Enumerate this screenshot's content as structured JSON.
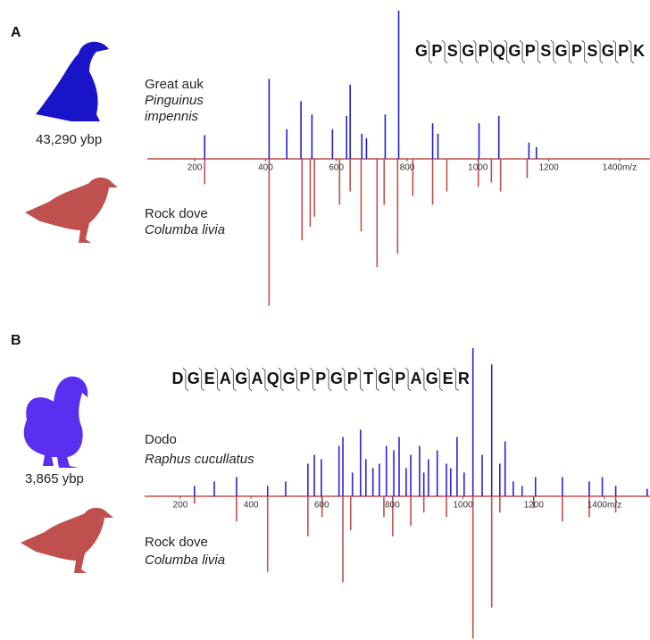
{
  "chart_data": [
    {
      "type": "mirror",
      "panel": "A",
      "sequence": [
        "G",
        "P",
        "S",
        "G",
        "P",
        "Q",
        "G",
        "P",
        "S",
        "G",
        "P",
        "S",
        "G",
        "P",
        "K"
      ],
      "xlim": [
        66,
        1486
      ],
      "xticks": [
        200,
        400,
        600,
        800,
        1000,
        1200,
        {
          "value": 1400,
          "label": "1400m/z"
        }
      ],
      "ylim": [
        -100,
        100
      ],
      "series": [
        {
          "name": "Great auk",
          "species": "Pinguinus impennis",
          "age": "43,290 ybp",
          "color": "#1f1fcc",
          "x": [
            228,
            410,
            460,
            500,
            531,
            589,
            629,
            639,
            672,
            685,
            738,
            776,
            872,
            887,
            1003,
            1059,
            1144,
            1165
          ],
          "values": [
            16,
            54,
            20,
            39,
            30,
            20,
            29,
            50,
            17,
            14,
            30,
            100,
            24,
            17,
            24,
            29,
            11,
            8
          ]
        },
        {
          "name": "Rock dove",
          "species": "Columba livia",
          "color": "#c0504d",
          "x": [
            228,
            410,
            503,
            526,
            538,
            609,
            639,
            670,
            715,
            735,
            773,
            816,
            872,
            912,
            1001,
            1038,
            1064,
            1139
          ],
          "values": [
            -17,
            -99,
            -55,
            -46,
            -39,
            -31,
            -22,
            -49,
            -73,
            -31,
            -64,
            -25,
            -31,
            -22,
            -19,
            -16,
            -22,
            -13
          ]
        }
      ]
    },
    {
      "type": "mirror",
      "panel": "B",
      "sequence": [
        "D",
        "G",
        "E",
        "A",
        "G",
        "A",
        "Q",
        "G",
        "P",
        "P",
        "G",
        "P",
        "T",
        "G",
        "P",
        "A",
        "G",
        "E",
        "R"
      ],
      "xlim": [
        99,
        1529
      ],
      "xticks": [
        200,
        400,
        600,
        800,
        1000,
        1200,
        {
          "value": 1400,
          "label": "1400m/z"
        }
      ],
      "ylim": [
        -100,
        100
      ],
      "series": [
        {
          "name": "Dodo",
          "species": "Raphus cucullatus",
          "age": "3,865 ybp",
          "color": "#2f1fe0",
          "x": [
            240,
            296,
            359,
            447,
            498,
            561,
            579,
            599,
            649,
            660,
            687,
            710,
            725,
            745,
            763,
            783,
            804,
            819,
            839,
            852,
            877,
            889,
            902,
            927,
            953,
            965,
            983,
            1003,
            1028,
            1054,
            1081,
            1104,
            1119,
            1142,
            1167,
            1205,
            1281,
            1357,
            1394,
            1432,
            1521
          ],
          "values": [
            7,
            10,
            13,
            7,
            10,
            22,
            28,
            25,
            34,
            40,
            16,
            45,
            25,
            19,
            22,
            34,
            31,
            40,
            19,
            28,
            34,
            16,
            25,
            31,
            22,
            19,
            40,
            16,
            100,
            28,
            89,
            22,
            37,
            10,
            7,
            13,
            13,
            10,
            13,
            7,
            5
          ]
        },
        {
          "name": "Rock dove",
          "species": "Columba livia",
          "color": "#c0504d",
          "x": [
            240,
            359,
            447,
            561,
            601,
            660,
            682,
            776,
            801,
            852,
            889,
            953,
            1028,
            1081,
            1104,
            1200,
            1281,
            1357,
            1432
          ],
          "values": [
            -5,
            -17,
            -51,
            -27,
            -14,
            -58,
            -23,
            -14,
            -27,
            -20,
            -11,
            -14,
            -96,
            -75,
            -11,
            -8,
            -17,
            -14,
            -11
          ]
        }
      ]
    }
  ]
}
